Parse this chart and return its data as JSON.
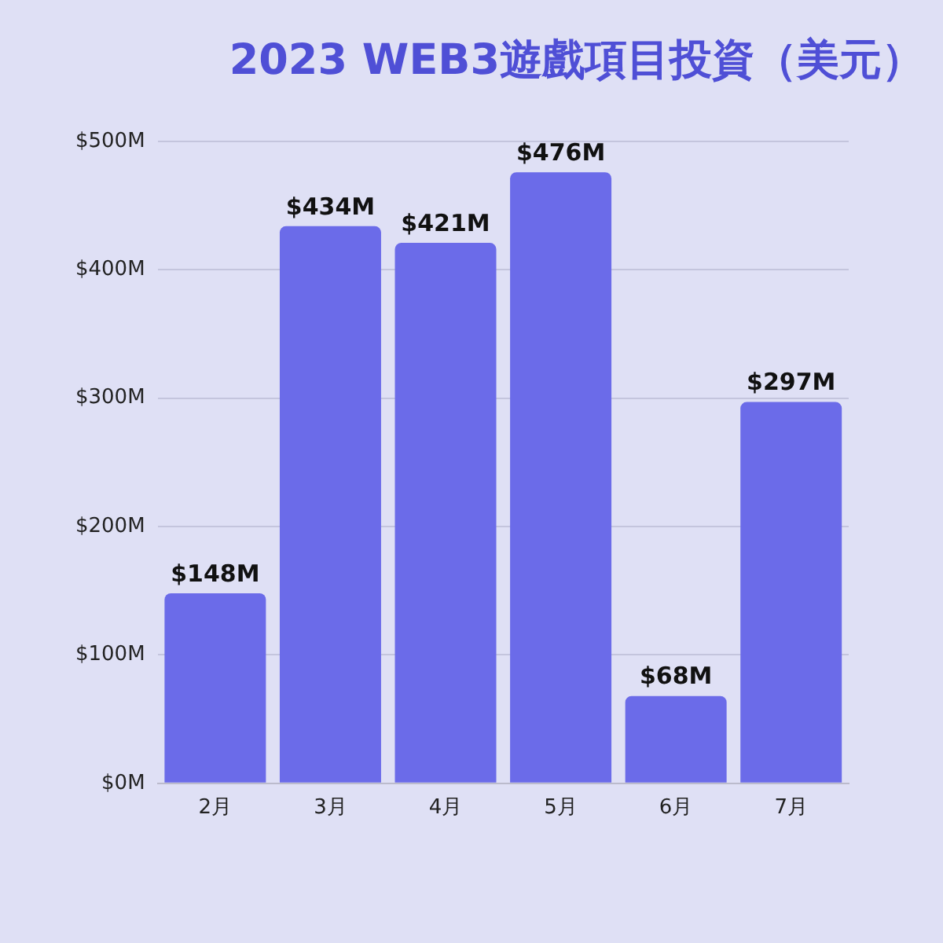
{
  "chart_data": {
    "type": "bar",
    "title": "2023 WEB3遊戲項目投資（美元）",
    "categories": [
      "2月",
      "3月",
      "4月",
      "5月",
      "6月",
      "7月"
    ],
    "values": [
      148,
      434,
      421,
      476,
      68,
      297
    ],
    "value_labels": [
      "$148M",
      "$434M",
      "$421M",
      "$476M",
      "$68M",
      "$297M"
    ],
    "color": "#6b6be9",
    "ylim": [
      0,
      500
    ],
    "yticks": [
      {
        "value": 0,
        "label": "$0M"
      },
      {
        "value": 100,
        "label": "$100M"
      },
      {
        "value": 200,
        "label": "$200M"
      },
      {
        "value": 300,
        "label": "$300M"
      },
      {
        "value": 400,
        "label": "$400M"
      },
      {
        "value": 500,
        "label": "$500M"
      }
    ],
    "grid": "y",
    "legend": false
  }
}
